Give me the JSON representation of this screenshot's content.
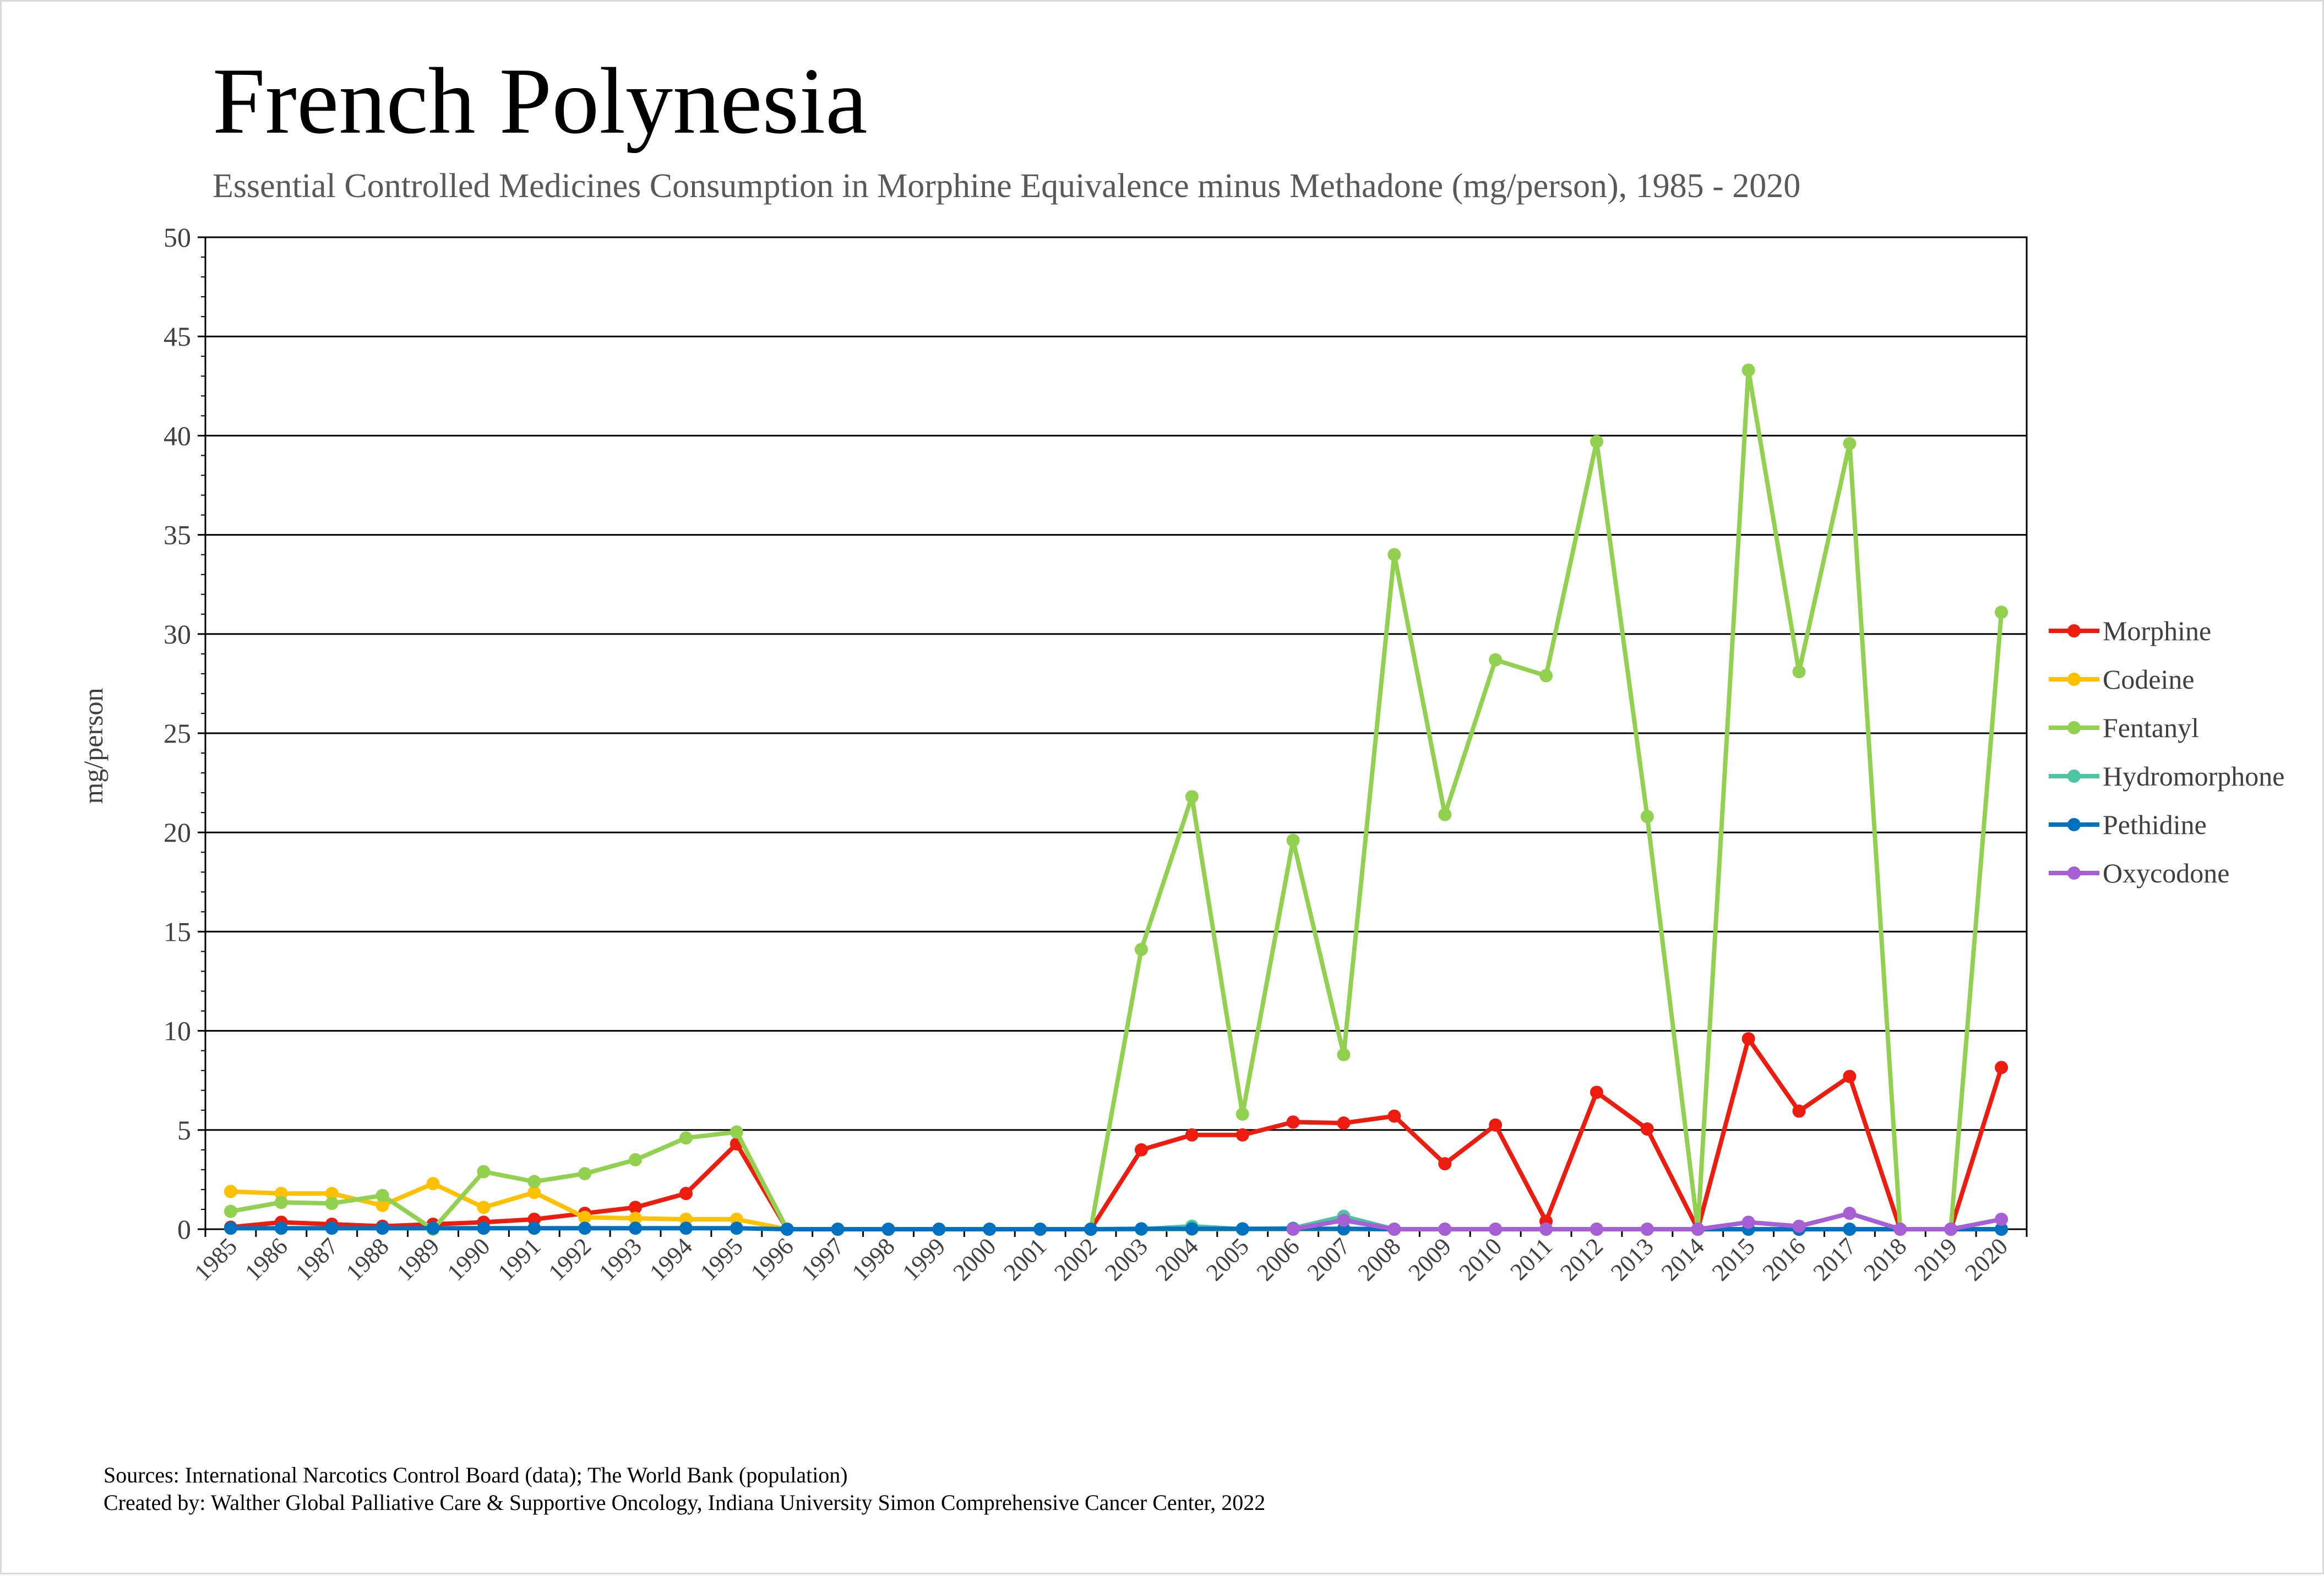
{
  "chart_data": {
    "type": "line",
    "title": "French Polynesia",
    "subtitle": "Essential Controlled Medicines Consumption in Morphine Equivalence minus Methadone (mg/person), 1985 - 2020",
    "xlabel": "",
    "ylabel": "mg/person",
    "ylim": [
      0,
      50
    ],
    "yticks": [
      0,
      5,
      10,
      15,
      20,
      25,
      30,
      35,
      40,
      45,
      50
    ],
    "grid": true,
    "legend_position": "right",
    "categories": [
      "1985",
      "1986",
      "1987",
      "1988",
      "1989",
      "1990",
      "1991",
      "1992",
      "1993",
      "1994",
      "1995",
      "1996",
      "1997",
      "1998",
      "1999",
      "2000",
      "2001",
      "2002",
      "2003",
      "2004",
      "2005",
      "2006",
      "2007",
      "2008",
      "2009",
      "2010",
      "2011",
      "2012",
      "2013",
      "2014",
      "2015",
      "2016",
      "2017",
      "2018",
      "2019",
      "2020"
    ],
    "series": [
      {
        "name": "Morphine",
        "color": "#ee1c0e",
        "values": [
          0.1,
          0.35,
          0.25,
          0.15,
          0.25,
          0.35,
          0.5,
          0.8,
          1.1,
          1.8,
          4.3,
          0,
          0,
          0,
          0,
          0,
          0,
          0,
          4.0,
          4.75,
          4.75,
          5.4,
          5.35,
          5.7,
          3.3,
          5.25,
          0.4,
          6.9,
          5.05,
          0,
          9.6,
          5.95,
          7.7,
          0,
          0,
          8.15
        ]
      },
      {
        "name": "Codeine",
        "color": "#ffc000",
        "values": [
          1.9,
          1.8,
          1.8,
          1.2,
          2.3,
          1.1,
          1.85,
          0.6,
          0.55,
          0.5,
          0.5,
          0,
          0,
          0,
          0,
          0,
          0,
          0,
          0,
          0,
          0,
          0,
          0,
          0,
          0,
          0,
          0,
          0,
          0,
          0,
          0,
          0,
          0,
          0,
          0,
          0
        ]
      },
      {
        "name": "Fentanyl",
        "color": "#92d050",
        "values": [
          0.9,
          1.35,
          1.3,
          1.7,
          0,
          2.9,
          2.4,
          2.8,
          3.5,
          4.6,
          4.9,
          0,
          0,
          0,
          0,
          0,
          0,
          0,
          14.1,
          21.8,
          5.8,
          19.6,
          8.8,
          34.0,
          20.9,
          28.7,
          27.9,
          39.7,
          20.8,
          0,
          43.3,
          28.1,
          39.6,
          0,
          0,
          31.1
        ]
      },
      {
        "name": "Hydromorphone",
        "color": "#4bc5a0",
        "values": [
          null,
          null,
          null,
          null,
          null,
          null,
          null,
          null,
          null,
          null,
          null,
          null,
          null,
          null,
          null,
          null,
          null,
          0,
          0,
          0.15,
          0,
          0.05,
          0.65,
          0,
          0,
          0,
          0,
          0,
          0,
          0,
          0,
          0,
          0,
          0,
          0,
          0
        ]
      },
      {
        "name": "Pethidine",
        "color": "#0070c0",
        "values": [
          0.05,
          0.05,
          0.05,
          0.05,
          0.05,
          0.05,
          0.05,
          0.05,
          0.05,
          0.05,
          0.05,
          0,
          0,
          0,
          0,
          0,
          0,
          0,
          0.02,
          0.02,
          0.02,
          0.02,
          0.02,
          0,
          0,
          0,
          0,
          0,
          0,
          0,
          0,
          0,
          0,
          0,
          0,
          0
        ]
      },
      {
        "name": "Oxycodone",
        "color": "#a75fd6",
        "values": [
          null,
          null,
          null,
          null,
          null,
          null,
          null,
          null,
          null,
          null,
          null,
          null,
          null,
          null,
          null,
          null,
          null,
          null,
          null,
          null,
          null,
          0,
          0.45,
          0,
          0,
          0,
          0,
          0,
          0,
          0,
          0.35,
          0.15,
          0.8,
          0,
          0,
          0.5
        ]
      }
    ]
  },
  "footer": {
    "sources": "Sources: International Narcotics Control Board (data); The World Bank (population)",
    "created_by": "Created by: Walther Global Palliative Care & Supportive Oncology, Indiana University Simon Comprehensive Cancer Center, 2022"
  }
}
